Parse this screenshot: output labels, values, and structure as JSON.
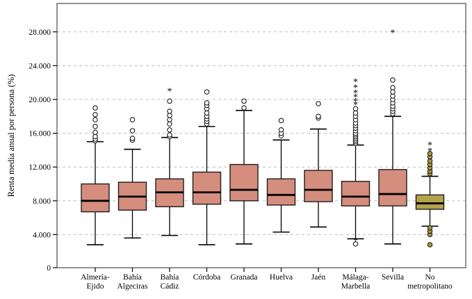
{
  "style": {
    "background": "#ffffff",
    "frame_color": "#4a4a4a",
    "grid_color": "#bdbdbd",
    "box_stroke": "#1c1c1c",
    "median_color": "#000000",
    "default_box_fill": "#d58d7d",
    "olive_box_fill": "#b3a44c",
    "olive_marker_fill": "#a8993f",
    "olive_star_color": "#c4ad2e"
  },
  "chart_data": {
    "type": "boxplot",
    "title": "",
    "xlabel": "",
    "ylabel": "Renta media anual por persona (%)",
    "ylim": [
      0,
      31300
    ],
    "grid": "horizontal-dashed",
    "legend": "none",
    "yticks": [
      0,
      4000,
      8000,
      12000,
      16000,
      20000,
      24000,
      28000
    ],
    "ytick_labels": [
      "0",
      "4.000",
      "8.000",
      "12.000",
      "16.000",
      "20.000",
      "24.000",
      "28.000"
    ],
    "categories": [
      "Almería-Ejido",
      "Bahía Algeciras",
      "Bahía Cádiz",
      "Córdoba",
      "Granada",
      "Huelva",
      "Jaén",
      "Málaga-Marbella",
      "Sevilla",
      "No metropolitano"
    ],
    "series": [
      {
        "label": "Almería-Ejido",
        "label_lines": [
          "Almería-",
          "Ejido"
        ],
        "low": 2800,
        "q1": 6700,
        "median": 8000,
        "q3": 10000,
        "high": 15000,
        "outliers": [
          15100,
          15300,
          15600,
          16100,
          16800,
          17600,
          18200,
          19000
        ],
        "extremes": [],
        "fill": "#d58d7d",
        "marker_fill": "#ffffff",
        "star_color": "#000000"
      },
      {
        "label": "Bahía Algeciras",
        "label_lines": [
          "Bahía",
          "Algeciras"
        ],
        "low": 3600,
        "q1": 6900,
        "median": 8500,
        "q3": 10200,
        "high": 14100,
        "outliers": [
          15200,
          15400,
          16300,
          17600
        ],
        "extremes": [],
        "fill": "#d58d7d",
        "marker_fill": "#ffffff",
        "star_color": "#000000"
      },
      {
        "label": "Bahía Cádiz",
        "label_lines": [
          "Bahía",
          "Cádiz"
        ],
        "low": 3900,
        "q1": 7300,
        "median": 9000,
        "q3": 10600,
        "high": 15500,
        "outliers": [
          15600,
          15800,
          16400,
          17100,
          17600,
          18100,
          18600,
          19800
        ],
        "extremes": [
          21000
        ],
        "fill": "#d58d7d",
        "marker_fill": "#ffffff",
        "star_color": "#000000"
      },
      {
        "label": "Córdoba",
        "label_lines": [
          "Córdoba"
        ],
        "low": 2800,
        "q1": 7600,
        "median": 9000,
        "q3": 11400,
        "high": 16800,
        "outliers": [
          17100,
          17400,
          17700,
          18000,
          18400,
          18900,
          19300,
          19600,
          20900
        ],
        "extremes": [],
        "fill": "#d58d7d",
        "marker_fill": "#ffffff",
        "star_color": "#000000"
      },
      {
        "label": "Granada",
        "label_lines": [
          "Granada"
        ],
        "low": 2900,
        "q1": 8000,
        "median": 9300,
        "q3": 12300,
        "high": 18700,
        "outliers": [
          19000,
          19800
        ],
        "extremes": [],
        "fill": "#d58d7d",
        "marker_fill": "#ffffff",
        "star_color": "#000000"
      },
      {
        "label": "Huelva",
        "label_lines": [
          "Huelva"
        ],
        "low": 4300,
        "q1": 7500,
        "median": 8700,
        "q3": 10600,
        "high": 15200,
        "outliers": [
          15700,
          16000,
          16400,
          17500
        ],
        "extremes": [],
        "fill": "#d58d7d",
        "marker_fill": "#ffffff",
        "star_color": "#000000"
      },
      {
        "label": "Jaén",
        "label_lines": [
          "Jaén"
        ],
        "low": 4900,
        "q1": 7900,
        "median": 9300,
        "q3": 11600,
        "high": 16500,
        "outliers": [
          17800,
          18000,
          19500
        ],
        "extremes": [],
        "fill": "#d58d7d",
        "marker_fill": "#ffffff",
        "star_color": "#000000"
      },
      {
        "label": "Málaga-Marbella",
        "label_lines": [
          "Málaga-",
          "Marbella"
        ],
        "low": 3500,
        "q1": 7400,
        "median": 8500,
        "q3": 10300,
        "high": 14600,
        "outliers": [
          2900,
          14800,
          15000,
          15200,
          15400,
          15600,
          15800,
          16000,
          16300,
          16600,
          16900,
          17200,
          17600,
          18000,
          18400,
          18900
        ],
        "extremes": [
          3300,
          19400,
          19800,
          20300,
          20800,
          21400,
          22100
        ],
        "fill": "#d58d7d",
        "marker_fill": "#ffffff",
        "star_color": "#000000"
      },
      {
        "label": "Sevilla",
        "label_lines": [
          "Sevilla"
        ],
        "low": 2900,
        "q1": 7400,
        "median": 8800,
        "q3": 11700,
        "high": 18000,
        "outliers": [
          18300,
          18600,
          18900,
          19200,
          19600,
          20000,
          20400,
          20900,
          21400,
          22300
        ],
        "extremes": [
          27900
        ],
        "fill": "#d58d7d",
        "marker_fill": "#ffffff",
        "star_color": "#000000"
      },
      {
        "label": "No metropolitano",
        "label_lines": [
          "No",
          "metropolitano"
        ],
        "low": 5000,
        "q1": 7000,
        "median": 7700,
        "q3": 8700,
        "high": 10900,
        "outliers": [
          2800,
          4000,
          4400,
          4800,
          11200,
          11500,
          11900,
          12300,
          12700,
          13200,
          13600
        ],
        "extremes": [
          13900,
          14600
        ],
        "fill": "#b3a44c",
        "marker_fill": "#a8993f",
        "star_color": "#c4ad2e"
      }
    ]
  }
}
